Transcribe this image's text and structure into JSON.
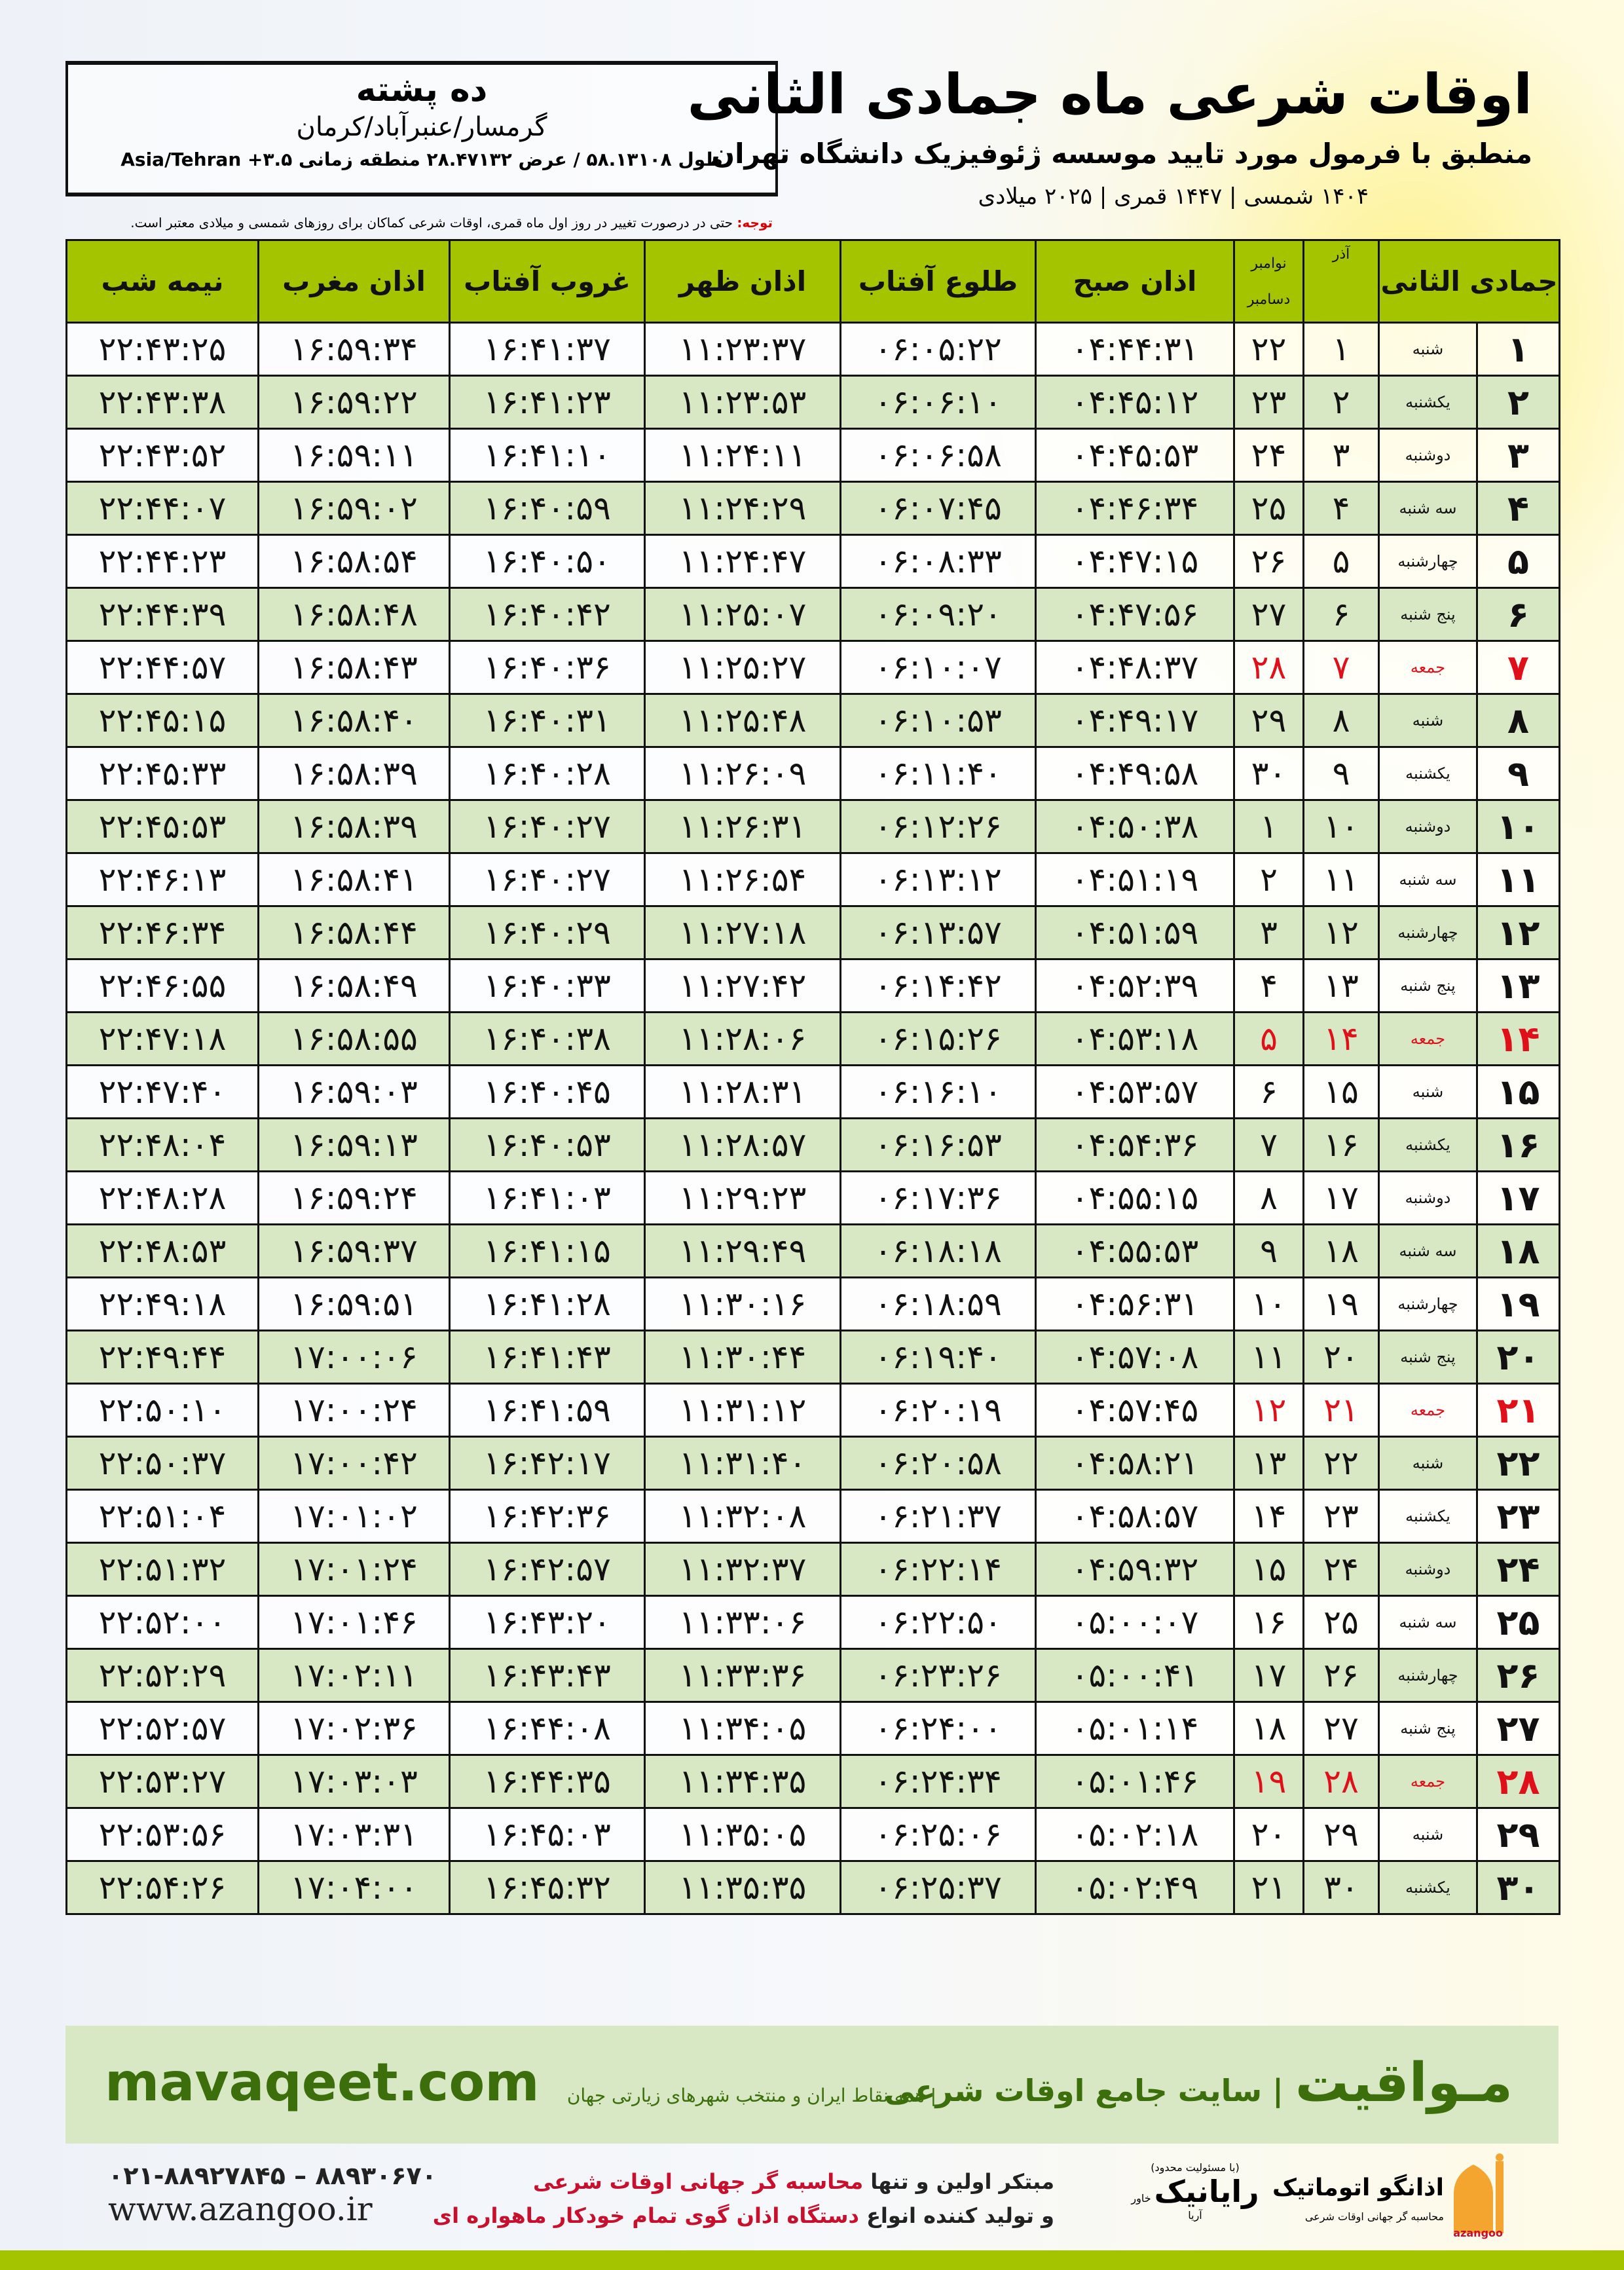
{
  "location": {
    "name": "ده پشته",
    "path": "گرمسار/عنبرآباد/کرمان",
    "coords": "طول ۵۸.۱۳۱۰۸ / عرض ۲۸.۴۷۱۳۲ منطقه زمانی ۳.۵+ Asia/Tehran"
  },
  "header": {
    "title": "اوقات شرعی ماه جمادی الثانی",
    "subtitle": "منطبق با فرمول مورد تایید موسسه ژئوفیزیک دانشگاه تهران",
    "years": "۱۴۰۴ شمسی | ۱۴۴۷ قمری | ۲۰۲۵ میلادی"
  },
  "note": {
    "label": "توجه:",
    "text": " حتی در درصورت تغییر در روز اول ماه قمری، اوقات شرعی کماکان برای روزهای شمسی و میلادی معتبر است."
  },
  "table": {
    "headers": {
      "month": "جمادی الثانی",
      "azar": "آذر",
      "nov": "نوامبر",
      "dec": "دسامبر",
      "fajr": "اذان صبح",
      "sunrise": "طلوع آفتاب",
      "dhuhr": "اذان ظهر",
      "sunset": "غروب آفتاب",
      "maghrib": "اذان مغرب",
      "midnight": "نیمه شب"
    },
    "highlight_color": "#e0101a",
    "header_color": "#a4c400",
    "rows": [
      {
        "day": "۱",
        "weekday": "شنبه",
        "azar": "۱",
        "greg": "۲۲",
        "times": [
          "۰۴:۴۴:۳۱",
          "۰۶:۰۵:۲۲",
          "۱۱:۲۳:۳۷",
          "۱۶:۴۱:۳۷",
          "۱۶:۵۹:۳۴",
          "۲۲:۴۳:۲۵"
        ]
      },
      {
        "day": "۲",
        "weekday": "یکشنبه",
        "azar": "۲",
        "greg": "۲۳",
        "times": [
          "۰۴:۴۵:۱۲",
          "۰۶:۰۶:۱۰",
          "۱۱:۲۳:۵۳",
          "۱۶:۴۱:۲۳",
          "۱۶:۵۹:۲۲",
          "۲۲:۴۳:۳۸"
        ]
      },
      {
        "day": "۳",
        "weekday": "دوشنبه",
        "azar": "۳",
        "greg": "۲۴",
        "times": [
          "۰۴:۴۵:۵۳",
          "۰۶:۰۶:۵۸",
          "۱۱:۲۴:۱۱",
          "۱۶:۴۱:۱۰",
          "۱۶:۵۹:۱۱",
          "۲۲:۴۳:۵۲"
        ]
      },
      {
        "day": "۴",
        "weekday": "سه شنبه",
        "azar": "۴",
        "greg": "۲۵",
        "times": [
          "۰۴:۴۶:۳۴",
          "۰۶:۰۷:۴۵",
          "۱۱:۲۴:۲۹",
          "۱۶:۴۰:۵۹",
          "۱۶:۵۹:۰۲",
          "۲۲:۴۴:۰۷"
        ]
      },
      {
        "day": "۵",
        "weekday": "چهارشنبه",
        "azar": "۵",
        "greg": "۲۶",
        "times": [
          "۰۴:۴۷:۱۵",
          "۰۶:۰۸:۳۳",
          "۱۱:۲۴:۴۷",
          "۱۶:۴۰:۵۰",
          "۱۶:۵۸:۵۴",
          "۲۲:۴۴:۲۳"
        ]
      },
      {
        "day": "۶",
        "weekday": "پنج شنبه",
        "azar": "۶",
        "greg": "۲۷",
        "times": [
          "۰۴:۴۷:۵۶",
          "۰۶:۰۹:۲۰",
          "۱۱:۲۵:۰۷",
          "۱۶:۴۰:۴۲",
          "۱۶:۵۸:۴۸",
          "۲۲:۴۴:۳۹"
        ]
      },
      {
        "day": "۷",
        "weekday": "جمعه",
        "azar": "۷",
        "greg": "۲۸",
        "holiday": true,
        "times": [
          "۰۴:۴۸:۳۷",
          "۰۶:۱۰:۰۷",
          "۱۱:۲۵:۲۷",
          "۱۶:۴۰:۳۶",
          "۱۶:۵۸:۴۳",
          "۲۲:۴۴:۵۷"
        ]
      },
      {
        "day": "۸",
        "weekday": "شنبه",
        "azar": "۸",
        "greg": "۲۹",
        "times": [
          "۰۴:۴۹:۱۷",
          "۰۶:۱۰:۵۳",
          "۱۱:۲۵:۴۸",
          "۱۶:۴۰:۳۱",
          "۱۶:۵۸:۴۰",
          "۲۲:۴۵:۱۵"
        ]
      },
      {
        "day": "۹",
        "weekday": "یکشنبه",
        "azar": "۹",
        "greg": "۳۰",
        "times": [
          "۰۴:۴۹:۵۸",
          "۰۶:۱۱:۴۰",
          "۱۱:۲۶:۰۹",
          "۱۶:۴۰:۲۸",
          "۱۶:۵۸:۳۹",
          "۲۲:۴۵:۳۳"
        ]
      },
      {
        "day": "۱۰",
        "weekday": "دوشنبه",
        "azar": "۱۰",
        "greg": "۱",
        "times": [
          "۰۴:۵۰:۳۸",
          "۰۶:۱۲:۲۶",
          "۱۱:۲۶:۳۱",
          "۱۶:۴۰:۲۷",
          "۱۶:۵۸:۳۹",
          "۲۲:۴۵:۵۳"
        ]
      },
      {
        "day": "۱۱",
        "weekday": "سه شنبه",
        "azar": "۱۱",
        "greg": "۲",
        "times": [
          "۰۴:۵۱:۱۹",
          "۰۶:۱۳:۱۲",
          "۱۱:۲۶:۵۴",
          "۱۶:۴۰:۲۷",
          "۱۶:۵۸:۴۱",
          "۲۲:۴۶:۱۳"
        ]
      },
      {
        "day": "۱۲",
        "weekday": "چهارشنبه",
        "azar": "۱۲",
        "greg": "۳",
        "times": [
          "۰۴:۵۱:۵۹",
          "۰۶:۱۳:۵۷",
          "۱۱:۲۷:۱۸",
          "۱۶:۴۰:۲۹",
          "۱۶:۵۸:۴۴",
          "۲۲:۴۶:۳۴"
        ]
      },
      {
        "day": "۱۳",
        "weekday": "پنج شنبه",
        "azar": "۱۳",
        "greg": "۴",
        "times": [
          "۰۴:۵۲:۳۹",
          "۰۶:۱۴:۴۲",
          "۱۱:۲۷:۴۲",
          "۱۶:۴۰:۳۳",
          "۱۶:۵۸:۴۹",
          "۲۲:۴۶:۵۵"
        ]
      },
      {
        "day": "۱۴",
        "weekday": "جمعه",
        "azar": "۱۴",
        "greg": "۵",
        "holiday": true,
        "times": [
          "۰۴:۵۳:۱۸",
          "۰۶:۱۵:۲۶",
          "۱۱:۲۸:۰۶",
          "۱۶:۴۰:۳۸",
          "۱۶:۵۸:۵۵",
          "۲۲:۴۷:۱۸"
        ]
      },
      {
        "day": "۱۵",
        "weekday": "شنبه",
        "azar": "۱۵",
        "greg": "۶",
        "times": [
          "۰۴:۵۳:۵۷",
          "۰۶:۱۶:۱۰",
          "۱۱:۲۸:۳۱",
          "۱۶:۴۰:۴۵",
          "۱۶:۵۹:۰۳",
          "۲۲:۴۷:۴۰"
        ]
      },
      {
        "day": "۱۶",
        "weekday": "یکشنبه",
        "azar": "۱۶",
        "greg": "۷",
        "times": [
          "۰۴:۵۴:۳۶",
          "۰۶:۱۶:۵۳",
          "۱۱:۲۸:۵۷",
          "۱۶:۴۰:۵۳",
          "۱۶:۵۹:۱۳",
          "۲۲:۴۸:۰۴"
        ]
      },
      {
        "day": "۱۷",
        "weekday": "دوشنبه",
        "azar": "۱۷",
        "greg": "۸",
        "times": [
          "۰۴:۵۵:۱۵",
          "۰۶:۱۷:۳۶",
          "۱۱:۲۹:۲۳",
          "۱۶:۴۱:۰۳",
          "۱۶:۵۹:۲۴",
          "۲۲:۴۸:۲۸"
        ]
      },
      {
        "day": "۱۸",
        "weekday": "سه شنبه",
        "azar": "۱۸",
        "greg": "۹",
        "times": [
          "۰۴:۵۵:۵۳",
          "۰۶:۱۸:۱۸",
          "۱۱:۲۹:۴۹",
          "۱۶:۴۱:۱۵",
          "۱۶:۵۹:۳۷",
          "۲۲:۴۸:۵۳"
        ]
      },
      {
        "day": "۱۹",
        "weekday": "چهارشنبه",
        "azar": "۱۹",
        "greg": "۱۰",
        "times": [
          "۰۴:۵۶:۳۱",
          "۰۶:۱۸:۵۹",
          "۱۱:۳۰:۱۶",
          "۱۶:۴۱:۲۸",
          "۱۶:۵۹:۵۱",
          "۲۲:۴۹:۱۸"
        ]
      },
      {
        "day": "۲۰",
        "weekday": "پنج شنبه",
        "azar": "۲۰",
        "greg": "۱۱",
        "times": [
          "۰۴:۵۷:۰۸",
          "۰۶:۱۹:۴۰",
          "۱۱:۳۰:۴۴",
          "۱۶:۴۱:۴۳",
          "۱۷:۰۰:۰۶",
          "۲۲:۴۹:۴۴"
        ]
      },
      {
        "day": "۲۱",
        "weekday": "جمعه",
        "azar": "۲۱",
        "greg": "۱۲",
        "holiday": true,
        "times": [
          "۰۴:۵۷:۴۵",
          "۰۶:۲۰:۱۹",
          "۱۱:۳۱:۱۲",
          "۱۶:۴۱:۵۹",
          "۱۷:۰۰:۲۴",
          "۲۲:۵۰:۱۰"
        ]
      },
      {
        "day": "۲۲",
        "weekday": "شنبه",
        "azar": "۲۲",
        "greg": "۱۳",
        "times": [
          "۰۴:۵۸:۲۱",
          "۰۶:۲۰:۵۸",
          "۱۱:۳۱:۴۰",
          "۱۶:۴۲:۱۷",
          "۱۷:۰۰:۴۲",
          "۲۲:۵۰:۳۷"
        ]
      },
      {
        "day": "۲۳",
        "weekday": "یکشنبه",
        "azar": "۲۳",
        "greg": "۱۴",
        "times": [
          "۰۴:۵۸:۵۷",
          "۰۶:۲۱:۳۷",
          "۱۱:۳۲:۰۸",
          "۱۶:۴۲:۳۶",
          "۱۷:۰۱:۰۲",
          "۲۲:۵۱:۰۴"
        ]
      },
      {
        "day": "۲۴",
        "weekday": "دوشنبه",
        "azar": "۲۴",
        "greg": "۱۵",
        "times": [
          "۰۴:۵۹:۳۲",
          "۰۶:۲۲:۱۴",
          "۱۱:۳۲:۳۷",
          "۱۶:۴۲:۵۷",
          "۱۷:۰۱:۲۴",
          "۲۲:۵۱:۳۲"
        ]
      },
      {
        "day": "۲۵",
        "weekday": "سه شنبه",
        "azar": "۲۵",
        "greg": "۱۶",
        "times": [
          "۰۵:۰۰:۰۷",
          "۰۶:۲۲:۵۰",
          "۱۱:۳۳:۰۶",
          "۱۶:۴۳:۲۰",
          "۱۷:۰۱:۴۶",
          "۲۲:۵۲:۰۰"
        ]
      },
      {
        "day": "۲۶",
        "weekday": "چهارشنبه",
        "azar": "۲۶",
        "greg": "۱۷",
        "times": [
          "۰۵:۰۰:۴۱",
          "۰۶:۲۳:۲۶",
          "۱۱:۳۳:۳۶",
          "۱۶:۴۳:۴۳",
          "۱۷:۰۲:۱۱",
          "۲۲:۵۲:۲۹"
        ]
      },
      {
        "day": "۲۷",
        "weekday": "پنج شنبه",
        "azar": "۲۷",
        "greg": "۱۸",
        "times": [
          "۰۵:۰۱:۱۴",
          "۰۶:۲۴:۰۰",
          "۱۱:۳۴:۰۵",
          "۱۶:۴۴:۰۸",
          "۱۷:۰۲:۳۶",
          "۲۲:۵۲:۵۷"
        ]
      },
      {
        "day": "۲۸",
        "weekday": "جمعه",
        "azar": "۲۸",
        "greg": "۱۹",
        "holiday": true,
        "times": [
          "۰۵:۰۱:۴۶",
          "۰۶:۲۴:۳۴",
          "۱۱:۳۴:۳۵",
          "۱۶:۴۴:۳۵",
          "۱۷:۰۳:۰۳",
          "۲۲:۵۳:۲۷"
        ]
      },
      {
        "day": "۲۹",
        "weekday": "شنبه",
        "azar": "۲۹",
        "greg": "۲۰",
        "times": [
          "۰۵:۰۲:۱۸",
          "۰۶:۲۵:۰۶",
          "۱۱:۳۵:۰۵",
          "۱۶:۴۵:۰۳",
          "۱۷:۰۳:۳۱",
          "۲۲:۵۳:۵۶"
        ]
      },
      {
        "day": "۳۰",
        "weekday": "یکشنبه",
        "azar": "۳۰",
        "greg": "۲۱",
        "times": [
          "۰۵:۰۲:۴۹",
          "۰۶:۲۵:۳۷",
          "۱۱:۳۵:۳۵",
          "۱۶:۴۵:۳۲",
          "۱۷:۰۴:۰۰",
          "۲۲:۵۴:۲۶"
        ]
      }
    ]
  },
  "footer": {
    "brand": "مـواقیت",
    "slogan": "| سایت جامع اوقات شرعی",
    "slogan2": "| همه نقاط ایران و منتخب شهرهای زیارتی جهان",
    "site": "mavaqeet.com",
    "phone": "۰۲۱-۸۸۹۲۷۸۴۵ – ۸۸۹۳۰۶۷۰",
    "web": "www.azangoo.ir",
    "promo1_a": "مبتکر اولین و تنها ",
    "promo1_b": "محاسبه گر جهانی اوقات شرعی",
    "promo2_a": "و تولید کننده انواع ",
    "promo2_b": "دستگاه اذان گوی تمام خودکار ماهواره ای",
    "rayanik": "رایانیک",
    "rayanik_sub": "خاور آریا",
    "rayanik_top": "(با مسئولیت محدود)",
    "azangoo": "اذانگو اتوماتیک",
    "azangoo_sub": "محاسبه گر جهانی اوقات شرعی",
    "azangoo_latin": "azangoo"
  }
}
